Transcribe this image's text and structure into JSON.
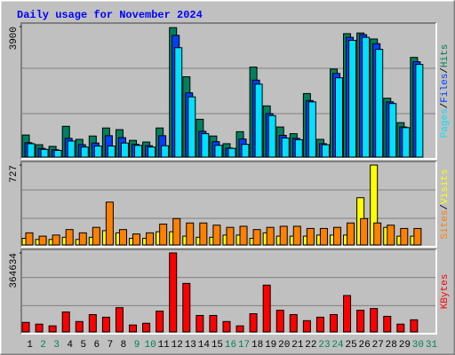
{
  "chart_data": {
    "type": "bar",
    "title": "Daily usage for November 2024",
    "categories": [
      "1",
      "2",
      "3",
      "4",
      "5",
      "6",
      "7",
      "8",
      "9",
      "10",
      "11",
      "12",
      "13",
      "14",
      "15",
      "16",
      "17",
      "18",
      "19",
      "20",
      "21",
      "22",
      "23",
      "24",
      "25",
      "26",
      "27",
      "28",
      "29",
      "30",
      "31"
    ],
    "category_colors": [
      "#000000",
      "#00805c",
      "#00805c",
      "#000000",
      "#000000",
      "#000000",
      "#000000",
      "#000000",
      "#00805c",
      "#00805c",
      "#000000",
      "#000000",
      "#000000",
      "#000000",
      "#000000",
      "#00805c",
      "#00805c",
      "#000000",
      "#000000",
      "#000000",
      "#000000",
      "#000000",
      "#00805c",
      "#00805c",
      "#000000",
      "#000000",
      "#000000",
      "#000000",
      "#000000",
      "#00805c",
      "#00805c"
    ],
    "legend_separator": "/",
    "panels": [
      {
        "ylim": [
          0,
          3900
        ],
        "yticks": [
          3900
        ],
        "series": [
          {
            "name": "Hits",
            "color": "#00805c",
            "values": [
              660,
              370,
              320,
              920,
              530,
              630,
              870,
              820,
              500,
              450,
              870,
              3870,
              2400,
              1130,
              630,
              400,
              760,
              2690,
              1530,
              900,
              700,
              1900,
              530,
              2630,
              3690,
              3710,
              3530,
              1760,
              1030,
              2980,
              null
            ]
          },
          {
            "name": "Files",
            "color": "#0040ff",
            "values": [
              430,
              260,
              220,
              560,
              370,
              420,
              640,
              580,
              380,
              340,
              640,
              3640,
              1920,
              770,
              460,
              270,
              540,
              2300,
              1300,
              650,
              560,
              1690,
              400,
              2500,
              3580,
              3660,
              3390,
              1650,
              900,
              2850,
              null
            ]
          },
          {
            "name": "Pages",
            "color": "#00e0ff",
            "values": [
              400,
              230,
              200,
              480,
              300,
              330,
              330,
              420,
              350,
              300,
              340,
              3270,
              1800,
              700,
              350,
              260,
              380,
              2180,
              1240,
              570,
              520,
              1650,
              370,
              2370,
              3490,
              3580,
              3220,
              1600,
              880,
              2770,
              null
            ]
          }
        ]
      },
      {
        "ylim": [
          0,
          727
        ],
        "yticks": [
          727
        ],
        "series": [
          {
            "name": "Visits",
            "color": "#ffff00",
            "values": [
              60,
              50,
              50,
              70,
              50,
              70,
              130,
              110,
              60,
              60,
              120,
              120,
              80,
              70,
              70,
              90,
              90,
              60,
              110,
              80,
              80,
              80,
              90,
              90,
              90,
              430,
              727,
              160,
              80,
              80,
              null
            ]
          },
          {
            "name": "Sites",
            "color": "#ff8000",
            "values": [
              110,
              80,
              90,
              140,
              110,
              160,
              390,
              140,
              100,
              110,
              190,
              240,
              200,
              200,
              180,
              160,
              170,
              140,
              160,
              170,
              170,
              150,
              150,
              160,
              200,
              240,
              200,
              180,
              150,
              150,
              null
            ]
          }
        ]
      },
      {
        "ylim": [
          0,
          364634
        ],
        "yticks": [
          364634
        ],
        "series": [
          {
            "name": "KBytes",
            "color": "#ff0000",
            "values": [
              44000,
              36000,
              28000,
              92000,
              48000,
              80000,
              68000,
              112000,
              32000,
              40000,
              96000,
              364634,
              224000,
              76000,
              76000,
              48000,
              28000,
              84000,
              216000,
              100000,
              80000,
              52000,
              68000,
              80000,
              168000,
              100000,
              108000,
              72000,
              36000,
              56000,
              null
            ]
          }
        ]
      }
    ]
  }
}
